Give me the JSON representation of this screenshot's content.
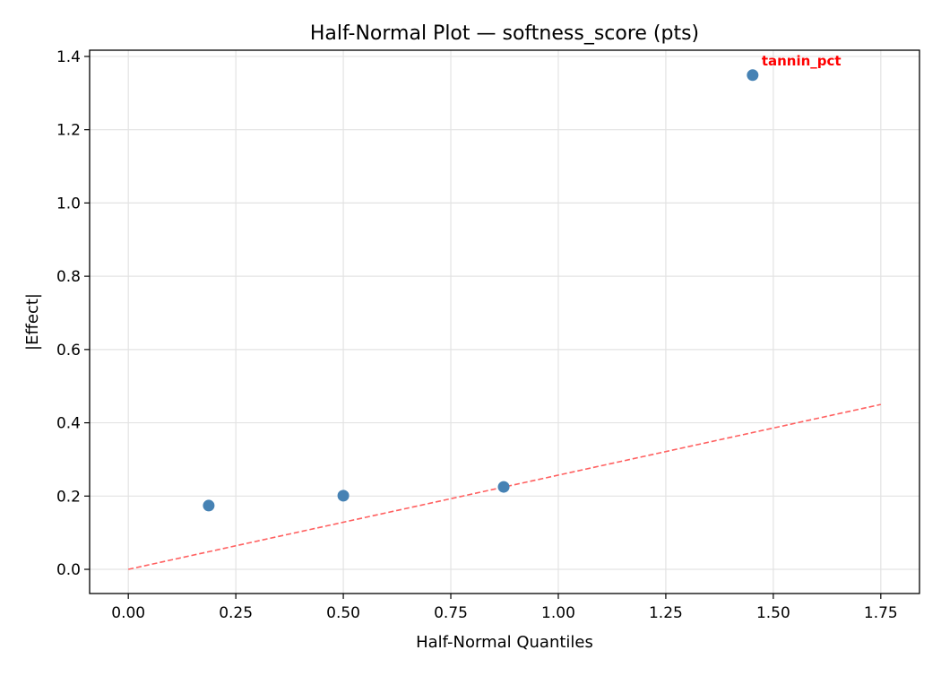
{
  "chart_data": {
    "type": "scatter",
    "title": "Half-Normal Plot — softness_score (pts)",
    "xlabel": "Half-Normal Quantiles",
    "ylabel": "|Effect|",
    "xlim": [
      -0.09,
      1.84
    ],
    "ylim": [
      -0.066,
      1.417
    ],
    "xticks": [
      0.0,
      0.25,
      0.5,
      0.75,
      1.0,
      1.25,
      1.5,
      1.75
    ],
    "xtick_labels": [
      "0.00",
      "0.25",
      "0.50",
      "0.75",
      "1.00",
      "1.25",
      "1.50",
      "1.75"
    ],
    "yticks": [
      0.0,
      0.2,
      0.4,
      0.6,
      0.8,
      1.0,
      1.2,
      1.4
    ],
    "ytick_labels": [
      "0.0",
      "0.2",
      "0.4",
      "0.6",
      "0.8",
      "1.0",
      "1.2",
      "1.4"
    ],
    "grid": true,
    "points": [
      {
        "x": 0.187,
        "y": 0.174
      },
      {
        "x": 0.5,
        "y": 0.201
      },
      {
        "x": 0.873,
        "y": 0.225
      },
      {
        "x": 1.452,
        "y": 1.349,
        "label": "tannin_pct"
      }
    ],
    "reference_line": {
      "x": [
        0.0,
        1.75
      ],
      "y": [
        0.0,
        0.45
      ],
      "style": "dashed"
    },
    "colors": {
      "points": "#4682b4",
      "reference_line": "#ff6060",
      "annotation": "#ff0000"
    }
  }
}
